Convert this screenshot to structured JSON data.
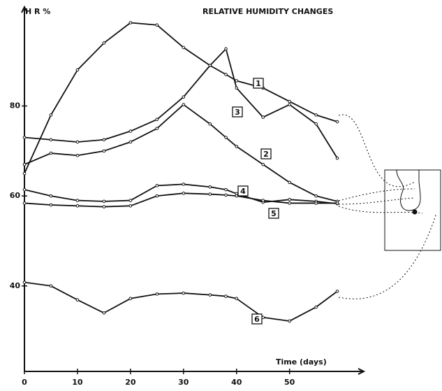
{
  "chart_data": {
    "type": "line",
    "title": "RELATIVE HUMIDITY CHANGES",
    "y_label": "H R %",
    "x_label": "Time  (days)",
    "x": [
      0,
      5,
      10,
      15,
      20,
      25,
      30,
      35,
      38,
      40,
      45,
      50,
      55,
      59
    ],
    "series": [
      {
        "name": "1",
        "color": "#111111",
        "values": [
          65,
          78,
          88,
          94,
          98.5,
          98,
          93,
          89,
          87,
          85.6,
          84,
          81,
          78,
          76.5
        ]
      },
      {
        "name": "3",
        "color": "#111111",
        "values": [
          73,
          72.5,
          72,
          72.5,
          74.4,
          77,
          82,
          89,
          92.7,
          84,
          77.5,
          80.3,
          76,
          68.4
        ]
      },
      {
        "name": "2",
        "color": "#111111",
        "values": [
          67,
          69.5,
          69,
          70,
          72,
          75,
          80.3,
          76,
          73,
          71,
          67,
          63,
          60,
          58.8
        ]
      },
      {
        "name": "4",
        "color": "#111111",
        "values": [
          61.4,
          60,
          59,
          58.8,
          59,
          62.3,
          62.6,
          62,
          61.4,
          60.5,
          58.6,
          59.2,
          58.8,
          58.3
        ]
      },
      {
        "name": "5",
        "color": "#111111",
        "values": [
          58.4,
          58,
          57.8,
          57.6,
          57.8,
          60,
          60.6,
          60.4,
          60.2,
          60,
          59,
          58.4,
          58.4,
          58.4
        ]
      },
      {
        "name": "6",
        "color": "#111111",
        "values": [
          40.8,
          40,
          36.9,
          34,
          37.2,
          38.2,
          38.4,
          38,
          37.7,
          37.2,
          33,
          32.2,
          35.3,
          38.8
        ]
      }
    ],
    "xlim": [
      0,
      64
    ],
    "ylim": [
      21,
      102
    ],
    "xticks": [
      0,
      10,
      20,
      30,
      40,
      50
    ],
    "yticks": [
      40,
      60,
      80
    ]
  }
}
